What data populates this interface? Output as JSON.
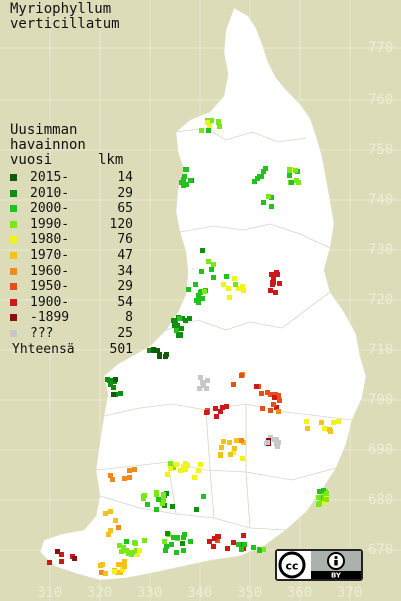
{
  "title": {
    "line1": "Myriophyllum",
    "line2": "verticillatum"
  },
  "legend_header": {
    "line1": "Uusimman",
    "line2": "havainnon",
    "line3": "vuosi",
    "count_label": "lkm"
  },
  "legend": [
    {
      "label": "2015-",
      "count": "14",
      "color": "#0c5c0c"
    },
    {
      "label": "2010-",
      "count": "29",
      "color": "#0f8f0f"
    },
    {
      "label": "2000-",
      "count": "65",
      "color": "#22c21e"
    },
    {
      "label": "1990-",
      "count": "120",
      "color": "#78e81a"
    },
    {
      "label": "1980-",
      "count": "76",
      "color": "#f3f31a"
    },
    {
      "label": "1970-",
      "count": "47",
      "color": "#f4c21a"
    },
    {
      "label": "1960-",
      "count": "34",
      "color": "#f08a1a"
    },
    {
      "label": "1950-",
      "count": "29",
      "color": "#e4501a"
    },
    {
      "label": "1900-",
      "count": "54",
      "color": "#cc1a1a"
    },
    {
      "label": "-1899",
      "count": "8",
      "color": "#8a1010"
    },
    {
      "label": "???",
      "count": "25",
      "color": "#c8c8c8"
    }
  ],
  "total": {
    "label": "Yhteensä",
    "count": "501"
  },
  "y_ticks": [
    "770",
    "760",
    "750",
    "740",
    "730",
    "720",
    "710",
    "700",
    "690",
    "680",
    "670"
  ],
  "x_ticks": [
    "310",
    "320",
    "330",
    "340",
    "350",
    "360",
    "370"
  ],
  "license_badge": {
    "cc": "cc",
    "by": "BY"
  }
}
